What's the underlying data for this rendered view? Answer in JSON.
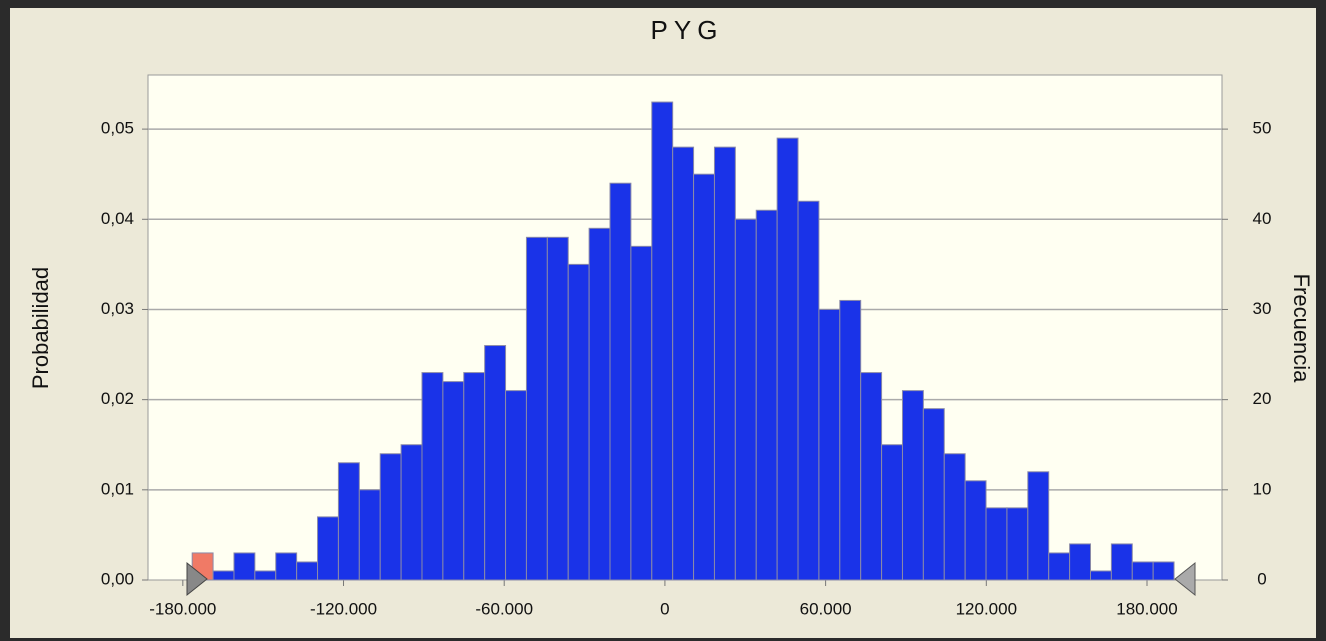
{
  "chart_data": {
    "type": "histogram",
    "title": "PYG",
    "y_label": "Probabilidad",
    "y2_label": "Frecuencia",
    "bins": [
      -176500,
      -168700,
      -160900,
      -153100,
      -145300,
      -137500,
      -129700,
      -121900,
      -114100,
      -106300,
      -98500,
      -90700,
      -82900,
      -75100,
      -67300,
      -59500,
      -51700,
      -43900,
      -36100,
      -28300,
      -20500,
      -12700,
      -4900,
      2900,
      10700,
      18500,
      26300,
      34100,
      41900,
      49700,
      57500,
      65300,
      73100,
      80900,
      88700,
      96500,
      104300,
      112100,
      119900,
      127700,
      135500,
      143300,
      151100,
      158900,
      166700,
      174500,
      182300,
      190100
    ],
    "values": [
      3,
      1,
      3,
      1,
      3,
      2,
      7,
      13,
      10,
      14,
      15,
      23,
      22,
      23,
      26,
      21,
      38,
      38,
      35,
      39,
      44,
      37,
      53,
      48,
      45,
      48,
      40,
      41,
      49,
      42,
      30,
      31,
      23,
      15,
      21,
      19,
      14,
      11,
      8,
      8,
      12,
      3,
      4,
      1,
      4,
      2,
      2
    ],
    "axis": "y2",
    "color": "#1a33e8",
    "highlight_color": "#f07a66",
    "highlight_index": 0,
    "xlim": [
      -193000,
      208000
    ],
    "xticks": [
      {
        "value": -180000,
        "label": "-180.000"
      },
      {
        "value": -120000,
        "label": "-120.000"
      },
      {
        "value": -60000,
        "label": "-60.000"
      },
      0,
      {
        "value": 60000,
        "label": "60.000"
      },
      {
        "value": 120000,
        "label": "120.000"
      },
      {
        "value": 180000,
        "label": "180.000"
      }
    ],
    "ylim": [
      0,
      0.056
    ],
    "yticks": [
      {
        "value": 0,
        "label": "0,00"
      },
      {
        "value": 0.01,
        "label": "0,01"
      },
      {
        "value": 0.02,
        "label": "0,02"
      },
      {
        "value": 0.03,
        "label": "0,03"
      },
      {
        "value": 0.04,
        "label": "0,04"
      },
      {
        "value": 0.05,
        "label": "0,05"
      }
    ],
    "y2lim": [
      0,
      56
    ],
    "y2ticks": [
      0,
      10,
      20,
      30,
      40,
      50
    ],
    "grid": true
  }
}
